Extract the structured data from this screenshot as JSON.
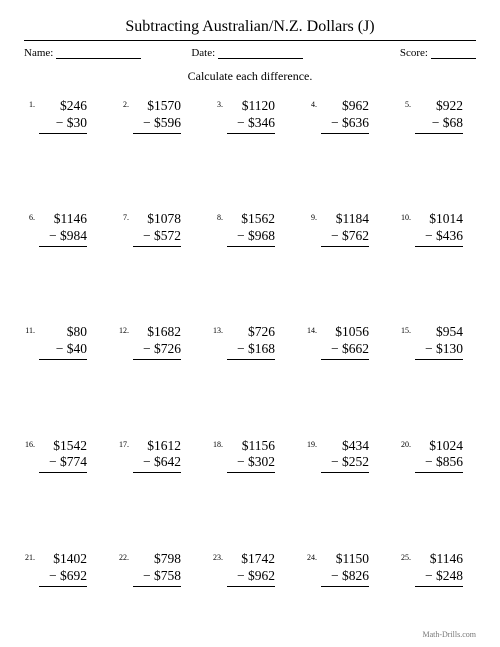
{
  "title": "Subtracting Australian/N.Z. Dollars (J)",
  "meta": {
    "name_label": "Name:",
    "date_label": "Date:",
    "score_label": "Score:"
  },
  "instruction": "Calculate each difference.",
  "currency": "$",
  "minus": "−",
  "problems": [
    {
      "n": "1.",
      "a": "246",
      "b": "30"
    },
    {
      "n": "2.",
      "a": "1570",
      "b": "596"
    },
    {
      "n": "3.",
      "a": "1120",
      "b": "346"
    },
    {
      "n": "4.",
      "a": "962",
      "b": "636"
    },
    {
      "n": "5.",
      "a": "922",
      "b": "68"
    },
    {
      "n": "6.",
      "a": "1146",
      "b": "984"
    },
    {
      "n": "7.",
      "a": "1078",
      "b": "572"
    },
    {
      "n": "8.",
      "a": "1562",
      "b": "968"
    },
    {
      "n": "9.",
      "a": "1184",
      "b": "762"
    },
    {
      "n": "10.",
      "a": "1014",
      "b": "436"
    },
    {
      "n": "11.",
      "a": "80",
      "b": "40"
    },
    {
      "n": "12.",
      "a": "1682",
      "b": "726"
    },
    {
      "n": "13.",
      "a": "726",
      "b": "168"
    },
    {
      "n": "14.",
      "a": "1056",
      "b": "662"
    },
    {
      "n": "15.",
      "a": "954",
      "b": "130"
    },
    {
      "n": "16.",
      "a": "1542",
      "b": "774"
    },
    {
      "n": "17.",
      "a": "1612",
      "b": "642"
    },
    {
      "n": "18.",
      "a": "1156",
      "b": "302"
    },
    {
      "n": "19.",
      "a": "434",
      "b": "252"
    },
    {
      "n": "20.",
      "a": "1024",
      "b": "856"
    },
    {
      "n": "21.",
      "a": "1402",
      "b": "692"
    },
    {
      "n": "22.",
      "a": "798",
      "b": "758"
    },
    {
      "n": "23.",
      "a": "1742",
      "b": "962"
    },
    {
      "n": "24.",
      "a": "1150",
      "b": "826"
    },
    {
      "n": "25.",
      "a": "1146",
      "b": "248"
    }
  ],
  "footer": "Math-Drills.com",
  "style": {
    "background_color": "#ffffff",
    "text_color": "#000000",
    "title_fontsize": 16,
    "body_fontsize": 13.5,
    "columns": 5,
    "rows": 5
  }
}
